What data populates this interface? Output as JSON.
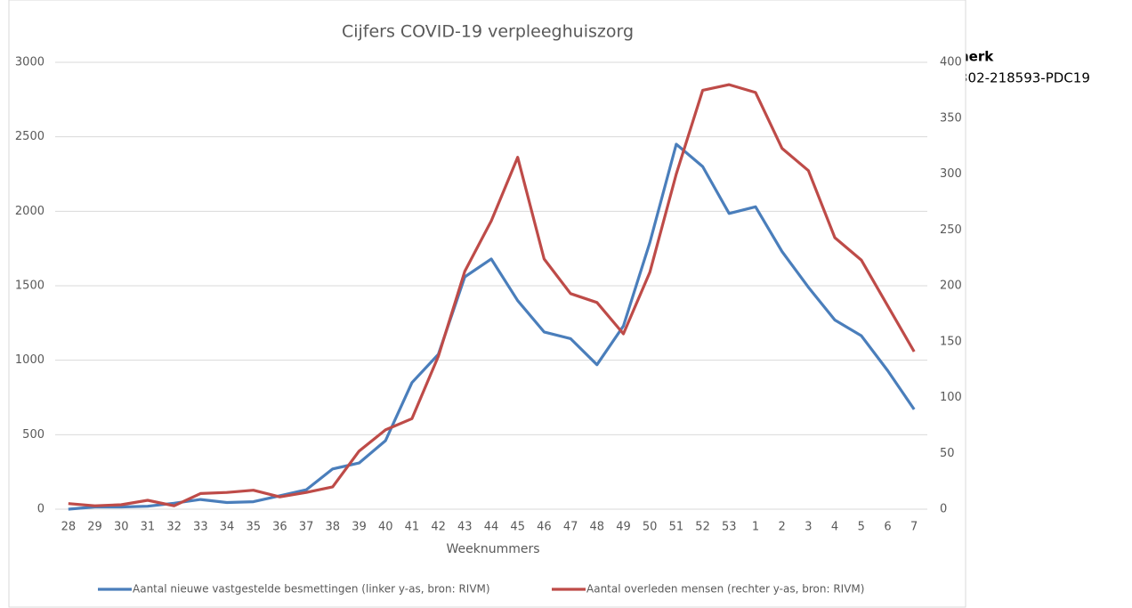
{
  "background_text": [
    "nerk",
    "302-218593-PDC19"
  ],
  "chart_data": {
    "type": "line",
    "title": "Cijfers COVID-19 verpleeghuiszorg",
    "x_label": "Weeknummers",
    "categories": [
      "28",
      "29",
      "30",
      "31",
      "32",
      "33",
      "34",
      "35",
      "36",
      "37",
      "38",
      "39",
      "40",
      "41",
      "42",
      "43",
      "44",
      "45",
      "46",
      "47",
      "48",
      "49",
      "50",
      "51",
      "52",
      "53",
      "1",
      "2",
      "3",
      "4",
      "5",
      "6",
      "7"
    ],
    "series": [
      {
        "name": "Aantal nieuwe vastgestelde besmettingen  (linker y-as, bron: RIVM)",
        "color": "#4a7ebb",
        "axis": "y",
        "values": [
          0,
          15,
          15,
          20,
          40,
          65,
          45,
          50,
          90,
          130,
          270,
          310,
          460,
          850,
          1040,
          1560,
          1680,
          1400,
          1190,
          1145,
          970,
          1230,
          1790,
          2450,
          2300,
          1985,
          2030,
          1730,
          1490,
          1270,
          1165,
          930,
          670
        ]
      },
      {
        "name": "Aantal overleden mensen  (rechter y-as, bron: RIVM)",
        "color": "#be4b48",
        "axis": "y2",
        "values": [
          5,
          3,
          4,
          8,
          3,
          14,
          15,
          17,
          11,
          15,
          20,
          52,
          71,
          81,
          137,
          213,
          258,
          315,
          224,
          193,
          185,
          157,
          212,
          300,
          375,
          380,
          373,
          323,
          303,
          243,
          223,
          182,
          141
        ]
      }
    ],
    "ylim": [
      0,
      3000
    ],
    "yticks": [
      0,
      500,
      1000,
      1500,
      2000,
      2500,
      3000
    ],
    "y2lim": [
      0,
      400
    ],
    "y2ticks": [
      0,
      50,
      100,
      150,
      200,
      250,
      300,
      350,
      400
    ],
    "grid": true,
    "legend": "bottom"
  }
}
